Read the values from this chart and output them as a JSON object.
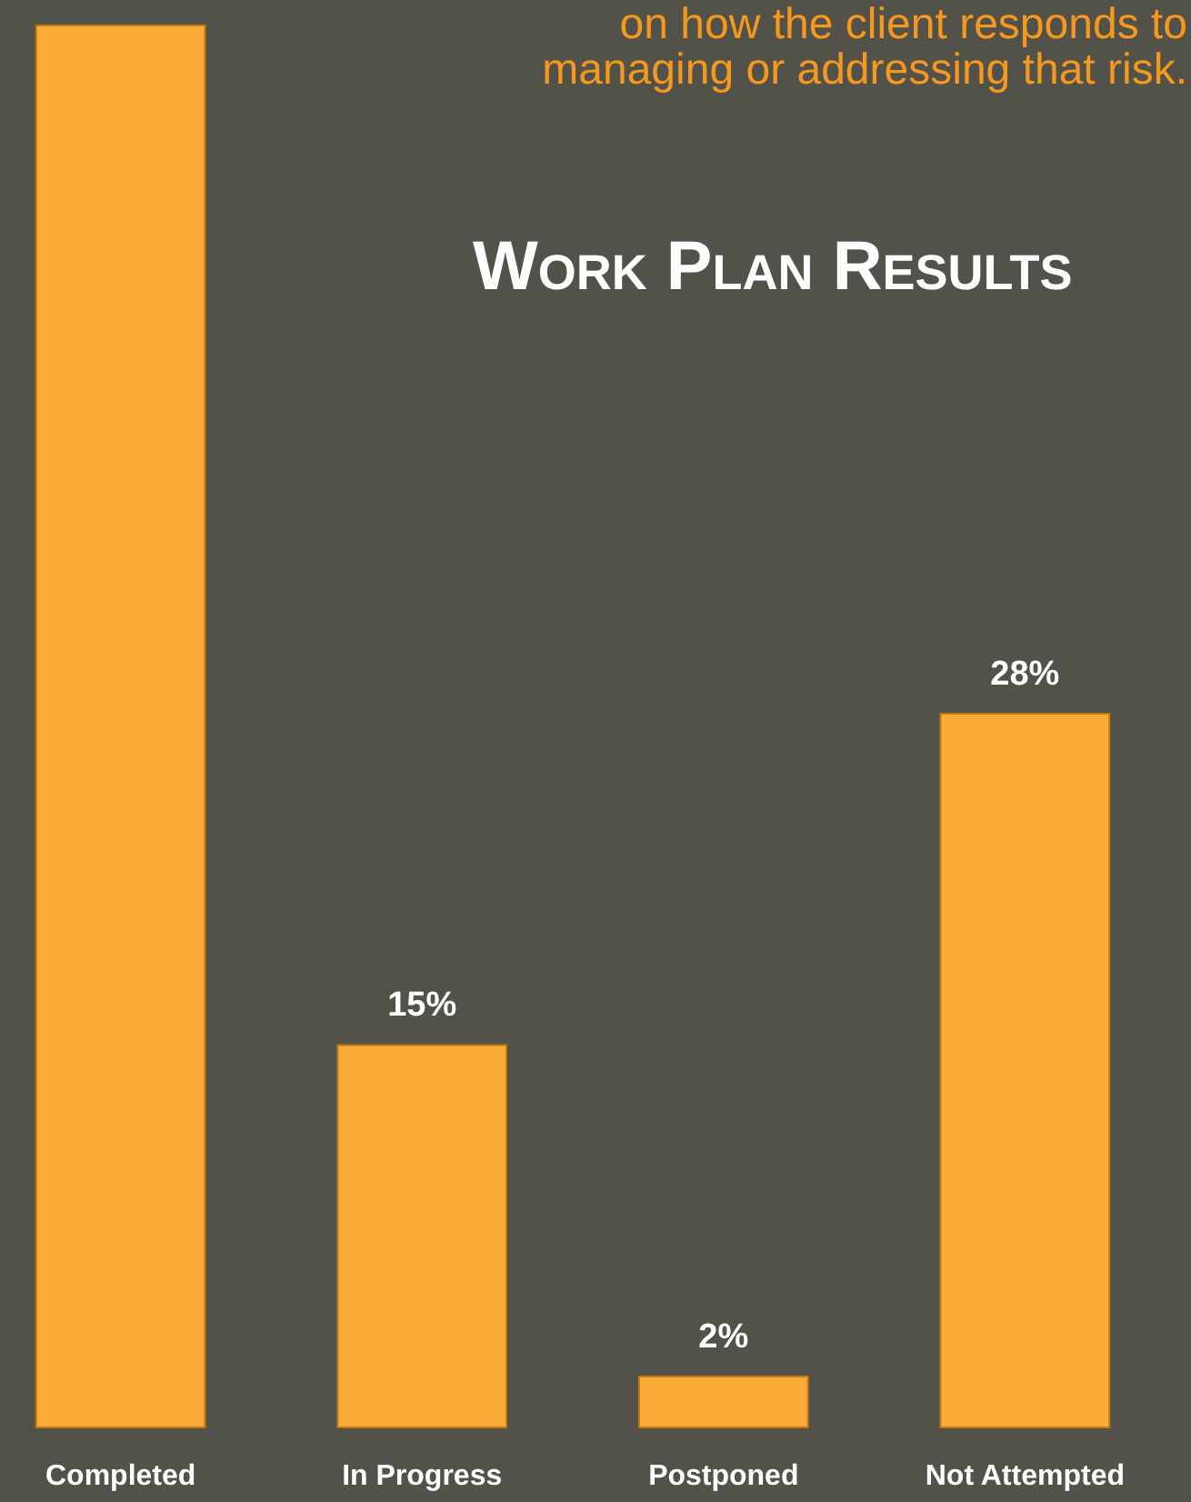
{
  "chart_data": {
    "type": "bar",
    "title": "Work Plan Results",
    "annotations": [
      "on how the client responds to\nmanaging or addressing that risk."
    ],
    "categories": [
      "Completed",
      "In Progress",
      "Postponed",
      "Not Attempted"
    ],
    "values": [
      55,
      15,
      2,
      28
    ],
    "value_labels": [
      null,
      "15%",
      "2%",
      "28%"
    ],
    "color": "#fbab38",
    "ylim": [
      0,
      56
    ],
    "tick_labels": "x"
  }
}
